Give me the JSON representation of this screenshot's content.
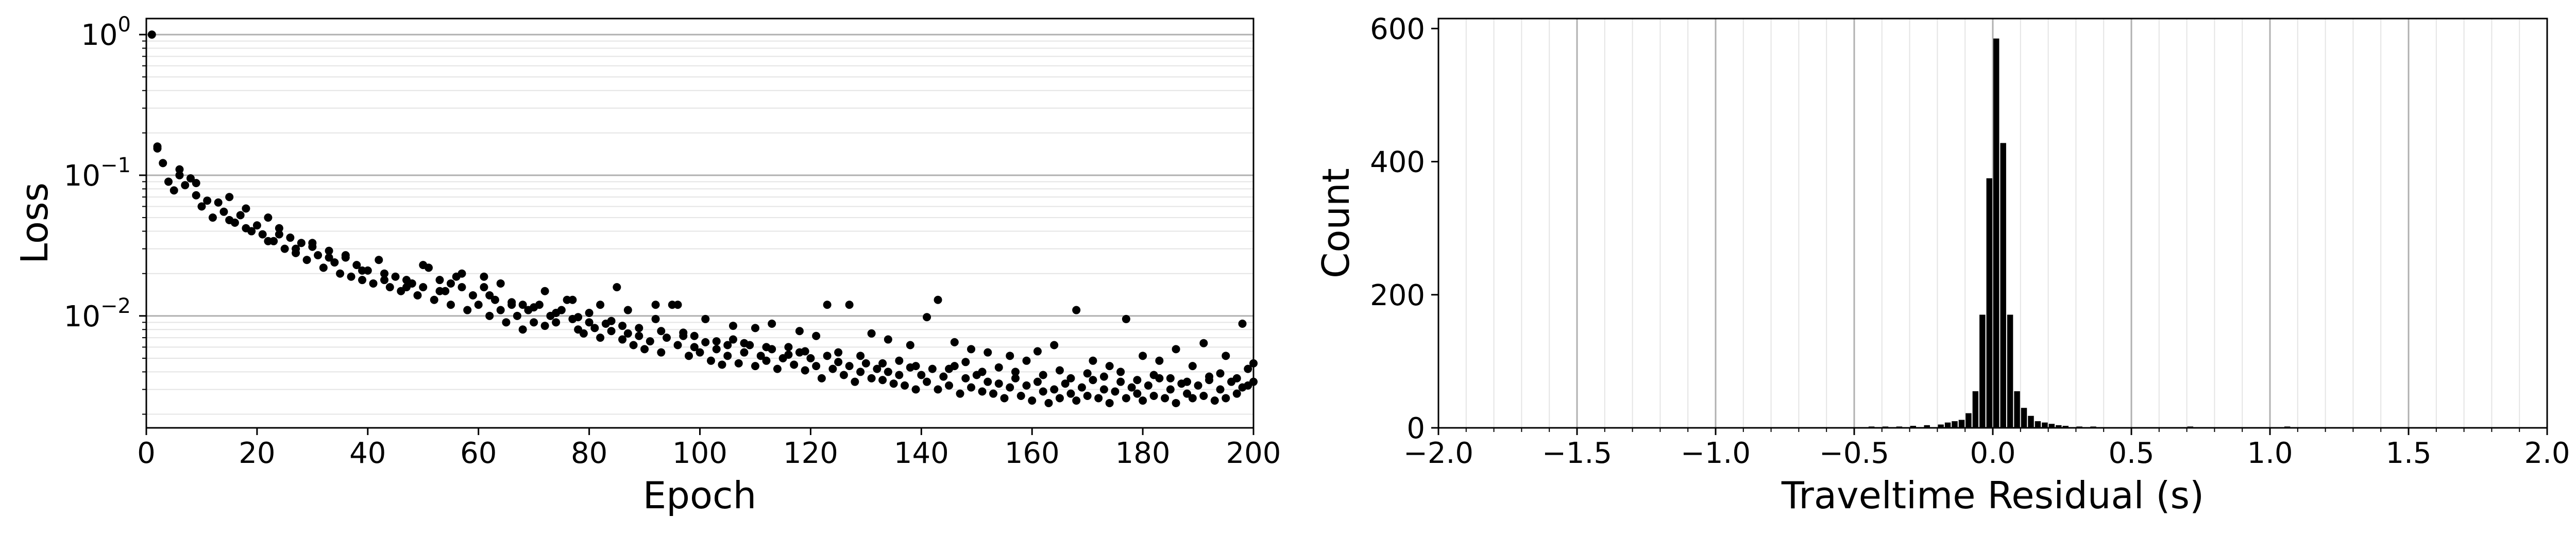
{
  "chart_data": [
    {
      "type": "scatter",
      "xlabel": "Epoch",
      "ylabel": "Loss",
      "xlim": [
        0,
        200
      ],
      "ylim": [
        0.0016,
        1.3
      ],
      "yscale": "log",
      "xticks": [
        0,
        20,
        40,
        60,
        80,
        100,
        120,
        140,
        160,
        180,
        200
      ],
      "xtick_labels": [
        "0",
        "20",
        "40",
        "60",
        "80",
        "100",
        "120",
        "140",
        "160",
        "180",
        "200"
      ],
      "yticks": [
        1,
        0.1,
        0.01
      ],
      "ytick_labels": [
        {
          "base": "10",
          "exp": "0"
        },
        {
          "base": "10",
          "exp": "−1"
        },
        {
          "base": "10",
          "exp": "−2"
        }
      ],
      "grid": "horizontal (major and minor)",
      "marker_color": "#000000",
      "points": [
        [
          1,
          1.0
        ],
        [
          2,
          0.155
        ],
        [
          3,
          0.122
        ],
        [
          4,
          0.09
        ],
        [
          5,
          0.078
        ],
        [
          6,
          0.1
        ],
        [
          7,
          0.085
        ],
        [
          8,
          0.095
        ],
        [
          9,
          0.072
        ],
        [
          10,
          0.06
        ],
        [
          11,
          0.066
        ],
        [
          12,
          0.05
        ],
        [
          13,
          0.064
        ],
        [
          14,
          0.055
        ],
        [
          15,
          0.07
        ],
        [
          16,
          0.046
        ],
        [
          17,
          0.052
        ],
        [
          18,
          0.058
        ],
        [
          19,
          0.04
        ],
        [
          20,
          0.044
        ],
        [
          21,
          0.038
        ],
        [
          22,
          0.05
        ],
        [
          23,
          0.034
        ],
        [
          24,
          0.042
        ],
        [
          25,
          0.03
        ],
        [
          26,
          0.036
        ],
        [
          27,
          0.028
        ],
        [
          28,
          0.033
        ],
        [
          29,
          0.025
        ],
        [
          30,
          0.031
        ],
        [
          31,
          0.027
        ],
        [
          32,
          0.022
        ],
        [
          33,
          0.029
        ],
        [
          34,
          0.024
        ],
        [
          35,
          0.02
        ],
        [
          36,
          0.026
        ],
        [
          37,
          0.019
        ],
        [
          38,
          0.023
        ],
        [
          39,
          0.018
        ],
        [
          40,
          0.021
        ],
        [
          41,
          0.017
        ],
        [
          42,
          0.025
        ],
        [
          43,
          0.02
        ],
        [
          44,
          0.016
        ],
        [
          45,
          0.019
        ],
        [
          46,
          0.015
        ],
        [
          47,
          0.018
        ],
        [
          48,
          0.017
        ],
        [
          49,
          0.014
        ],
        [
          50,
          0.016
        ],
        [
          51,
          0.022
        ],
        [
          52,
          0.013
        ],
        [
          53,
          0.018
        ],
        [
          54,
          0.015
        ],
        [
          55,
          0.012
        ],
        [
          56,
          0.019
        ],
        [
          57,
          0.016
        ],
        [
          58,
          0.011
        ],
        [
          59,
          0.014
        ],
        [
          60,
          0.012
        ],
        [
          61,
          0.016
        ],
        [
          62,
          0.01
        ],
        [
          63,
          0.013
        ],
        [
          64,
          0.011
        ],
        [
          65,
          0.009
        ],
        [
          66,
          0.012
        ],
        [
          67,
          0.01
        ],
        [
          68,
          0.008
        ],
        [
          69,
          0.011
        ],
        [
          70,
          0.009
        ],
        [
          71,
          0.012
        ],
        [
          72,
          0.0085
        ],
        [
          73,
          0.01
        ],
        [
          74,
          0.009
        ],
        [
          75,
          0.011
        ],
        [
          76,
          0.013
        ],
        [
          77,
          0.0095
        ],
        [
          78,
          0.008
        ],
        [
          79,
          0.0075
        ],
        [
          80,
          0.009
        ],
        [
          81,
          0.0082
        ],
        [
          82,
          0.007
        ],
        [
          83,
          0.0088
        ],
        [
          84,
          0.0078
        ],
        [
          85,
          0.016
        ],
        [
          86,
          0.0068
        ],
        [
          87,
          0.0075
        ],
        [
          88,
          0.0062
        ],
        [
          89,
          0.0072
        ],
        [
          90,
          0.0058
        ],
        [
          91,
          0.0066
        ],
        [
          92,
          0.0095
        ],
        [
          93,
          0.0055
        ],
        [
          94,
          0.007
        ],
        [
          95,
          0.012
        ],
        [
          96,
          0.0062
        ],
        [
          97,
          0.0072
        ],
        [
          98,
          0.0052
        ],
        [
          99,
          0.006
        ],
        [
          100,
          0.0055
        ],
        [
          101,
          0.0065
        ],
        [
          102,
          0.0048
        ],
        [
          103,
          0.0058
        ],
        [
          104,
          0.0045
        ],
        [
          105,
          0.0052
        ],
        [
          106,
          0.0068
        ],
        [
          107,
          0.0046
        ],
        [
          108,
          0.0055
        ],
        [
          109,
          0.0062
        ],
        [
          110,
          0.0044
        ],
        [
          111,
          0.0052
        ],
        [
          112,
          0.0048
        ],
        [
          113,
          0.0058
        ],
        [
          114,
          0.0042
        ],
        [
          115,
          0.005
        ],
        [
          116,
          0.006
        ],
        [
          117,
          0.0045
        ],
        [
          118,
          0.0055
        ],
        [
          119,
          0.0041
        ],
        [
          120,
          0.005
        ],
        [
          121,
          0.0044
        ],
        [
          122,
          0.0036
        ],
        [
          123,
          0.0052
        ],
        [
          124,
          0.0042
        ],
        [
          125,
          0.0047
        ],
        [
          126,
          0.0038
        ],
        [
          127,
          0.0044
        ],
        [
          128,
          0.0034
        ],
        [
          129,
          0.004
        ],
        [
          130,
          0.0046
        ],
        [
          131,
          0.0036
        ],
        [
          132,
          0.0042
        ],
        [
          133,
          0.0035
        ],
        [
          134,
          0.004
        ],
        [
          135,
          0.0033
        ],
        [
          136,
          0.0038
        ],
        [
          137,
          0.0032
        ],
        [
          138,
          0.0043
        ],
        [
          139,
          0.003
        ],
        [
          140,
          0.0038
        ],
        [
          141,
          0.0034
        ],
        [
          142,
          0.0042
        ],
        [
          143,
          0.003
        ],
        [
          144,
          0.0037
        ],
        [
          145,
          0.0032
        ],
        [
          146,
          0.0044
        ],
        [
          147,
          0.0028
        ],
        [
          148,
          0.0036
        ],
        [
          149,
          0.0031
        ],
        [
          150,
          0.0038
        ],
        [
          151,
          0.0029
        ],
        [
          152,
          0.0034
        ],
        [
          153,
          0.0028
        ],
        [
          154,
          0.0033
        ],
        [
          155,
          0.0026
        ],
        [
          156,
          0.0031
        ],
        [
          157,
          0.0036
        ],
        [
          158,
          0.0027
        ],
        [
          159,
          0.0032
        ],
        [
          160,
          0.0025
        ],
        [
          161,
          0.0034
        ],
        [
          162,
          0.0029
        ],
        [
          163,
          0.0024
        ],
        [
          164,
          0.003
        ],
        [
          165,
          0.0026
        ],
        [
          166,
          0.0033
        ],
        [
          167,
          0.0028
        ],
        [
          168,
          0.0025
        ],
        [
          169,
          0.0031
        ],
        [
          170,
          0.0027
        ],
        [
          171,
          0.0035
        ],
        [
          172,
          0.0026
        ],
        [
          173,
          0.003
        ],
        [
          174,
          0.0024
        ],
        [
          175,
          0.0029
        ],
        [
          176,
          0.0034
        ],
        [
          177,
          0.0026
        ],
        [
          178,
          0.0031
        ],
        [
          179,
          0.0028
        ],
        [
          180,
          0.0025
        ],
        [
          181,
          0.0032
        ],
        [
          182,
          0.0027
        ],
        [
          183,
          0.0036
        ],
        [
          184,
          0.0026
        ],
        [
          185,
          0.003
        ],
        [
          186,
          0.0024
        ],
        [
          187,
          0.0033
        ],
        [
          188,
          0.0028
        ],
        [
          189,
          0.0026
        ],
        [
          190,
          0.0032
        ],
        [
          191,
          0.0027
        ],
        [
          192,
          0.0035
        ],
        [
          193,
          0.0025
        ],
        [
          194,
          0.003
        ],
        [
          195,
          0.0026
        ],
        [
          196,
          0.0034
        ],
        [
          197,
          0.0028
        ],
        [
          198,
          0.0031
        ],
        [
          199,
          0.0032
        ],
        [
          200,
          0.0034
        ],
        [
          2,
          0.16
        ],
        [
          6,
          0.11
        ],
        [
          9,
          0.088
        ],
        [
          24,
          0.038
        ],
        [
          30,
          0.033
        ],
        [
          36,
          0.027
        ],
        [
          50,
          0.023
        ],
        [
          57,
          0.02
        ],
        [
          61,
          0.019
        ],
        [
          64,
          0.017
        ],
        [
          68,
          0.012
        ],
        [
          72,
          0.015
        ],
        [
          77,
          0.013
        ],
        [
          82,
          0.012
        ],
        [
          87,
          0.011
        ],
        [
          92,
          0.012
        ],
        [
          96,
          0.012
        ],
        [
          101,
          0.0095
        ],
        [
          106,
          0.0085
        ],
        [
          110,
          0.0082
        ],
        [
          113,
          0.0088
        ],
        [
          118,
          0.0078
        ],
        [
          121,
          0.0072
        ],
        [
          123,
          0.012
        ],
        [
          127,
          0.012
        ],
        [
          131,
          0.0075
        ],
        [
          134,
          0.0068
        ],
        [
          138,
          0.0062
        ],
        [
          141,
          0.0098
        ],
        [
          143,
          0.013
        ],
        [
          146,
          0.0065
        ],
        [
          149,
          0.0058
        ],
        [
          152,
          0.0055
        ],
        [
          156,
          0.0052
        ],
        [
          159,
          0.0048
        ],
        [
          161,
          0.0056
        ],
        [
          164,
          0.0062
        ],
        [
          168,
          0.011
        ],
        [
          171,
          0.0048
        ],
        [
          174,
          0.0044
        ],
        [
          177,
          0.0095
        ],
        [
          180,
          0.0052
        ],
        [
          183,
          0.0048
        ],
        [
          186,
          0.0058
        ],
        [
          189,
          0.0044
        ],
        [
          191,
          0.0064
        ],
        [
          195,
          0.0052
        ],
        [
          198,
          0.0088
        ],
        [
          199,
          0.0042
        ],
        [
          200,
          0.0046
        ],
        [
          15,
          0.048
        ],
        [
          18,
          0.042
        ],
        [
          22,
          0.034
        ],
        [
          27,
          0.03
        ],
        [
          33,
          0.026
        ],
        [
          39,
          0.021
        ],
        [
          43,
          0.018
        ],
        [
          47,
          0.016
        ],
        [
          53,
          0.015
        ],
        [
          55,
          0.017
        ],
        [
          62,
          0.014
        ],
        [
          66,
          0.0125
        ],
        [
          70,
          0.0115
        ],
        [
          74,
          0.0105
        ],
        [
          78,
          0.0098
        ],
        [
          80,
          0.0105
        ],
        [
          84,
          0.0092
        ],
        [
          86,
          0.0085
        ],
        [
          89,
          0.0082
        ],
        [
          93,
          0.0078
        ],
        [
          97,
          0.0076
        ],
        [
          99,
          0.0072
        ],
        [
          103,
          0.0066
        ],
        [
          105,
          0.0062
        ],
        [
          108,
          0.0064
        ],
        [
          112,
          0.006
        ],
        [
          116,
          0.0053
        ],
        [
          119,
          0.0056
        ],
        [
          125,
          0.0055
        ],
        [
          129,
          0.0052
        ],
        [
          133,
          0.0046
        ],
        [
          136,
          0.0048
        ],
        [
          139,
          0.0044
        ],
        [
          145,
          0.0042
        ],
        [
          148,
          0.0047
        ],
        [
          151,
          0.004
        ],
        [
          154,
          0.0043
        ],
        [
          157,
          0.004
        ],
        [
          162,
          0.0038
        ],
        [
          165,
          0.0041
        ],
        [
          167,
          0.0036
        ],
        [
          170,
          0.0039
        ],
        [
          173,
          0.0037
        ],
        [
          176,
          0.004
        ],
        [
          179,
          0.0035
        ],
        [
          182,
          0.0038
        ],
        [
          185,
          0.0036
        ],
        [
          188,
          0.0034
        ],
        [
          192,
          0.0037
        ],
        [
          194,
          0.0039
        ],
        [
          197,
          0.0036
        ]
      ]
    },
    {
      "type": "bar",
      "xlabel": "Traveltime Residual (s)",
      "ylabel": "Count",
      "xlim": [
        -2.0,
        2.0
      ],
      "ylim": [
        0,
        615
      ],
      "xticks": [
        -2.0,
        -1.5,
        -1.0,
        -0.5,
        0.0,
        0.5,
        1.0,
        1.5,
        2.0
      ],
      "xtick_labels": [
        "−2.0",
        "−1.5",
        "−1.0",
        "−0.5",
        "0.0",
        "0.5",
        "1.0",
        "1.5",
        "2.0"
      ],
      "yticks": [
        0,
        200,
        400,
        600
      ],
      "ytick_labels": [
        "0",
        "200",
        "400",
        "600"
      ],
      "grid": "vertical (major and minor)",
      "bar_color": "#000000",
      "bin_width": 0.025,
      "bins": [
        [
          -0.6,
          1
        ],
        [
          -0.55,
          1
        ],
        [
          -0.5,
          1
        ],
        [
          -0.45,
          2
        ],
        [
          -0.4,
          2
        ],
        [
          -0.35,
          2
        ],
        [
          -0.3,
          3
        ],
        [
          -0.25,
          4
        ],
        [
          -0.2,
          5
        ],
        [
          -0.175,
          8
        ],
        [
          -0.15,
          10
        ],
        [
          -0.125,
          12
        ],
        [
          -0.1,
          22
        ],
        [
          -0.075,
          55
        ],
        [
          -0.05,
          170
        ],
        [
          -0.025,
          375
        ],
        [
          0.0,
          585
        ],
        [
          0.025,
          428
        ],
        [
          0.05,
          170
        ],
        [
          0.075,
          55
        ],
        [
          0.1,
          30
        ],
        [
          0.125,
          18
        ],
        [
          0.15,
          10
        ],
        [
          0.175,
          8
        ],
        [
          0.2,
          6
        ],
        [
          0.225,
          4
        ],
        [
          0.25,
          3
        ],
        [
          0.3,
          2
        ],
        [
          0.35,
          2
        ],
        [
          0.4,
          1
        ],
        [
          0.45,
          1
        ],
        [
          0.5,
          1
        ],
        [
          0.6,
          1
        ],
        [
          0.7,
          2
        ],
        [
          0.8,
          1
        ],
        [
          0.95,
          1
        ],
        [
          1.05,
          2
        ],
        [
          1.2,
          1
        ],
        [
          1.3,
          1
        ]
      ]
    }
  ]
}
